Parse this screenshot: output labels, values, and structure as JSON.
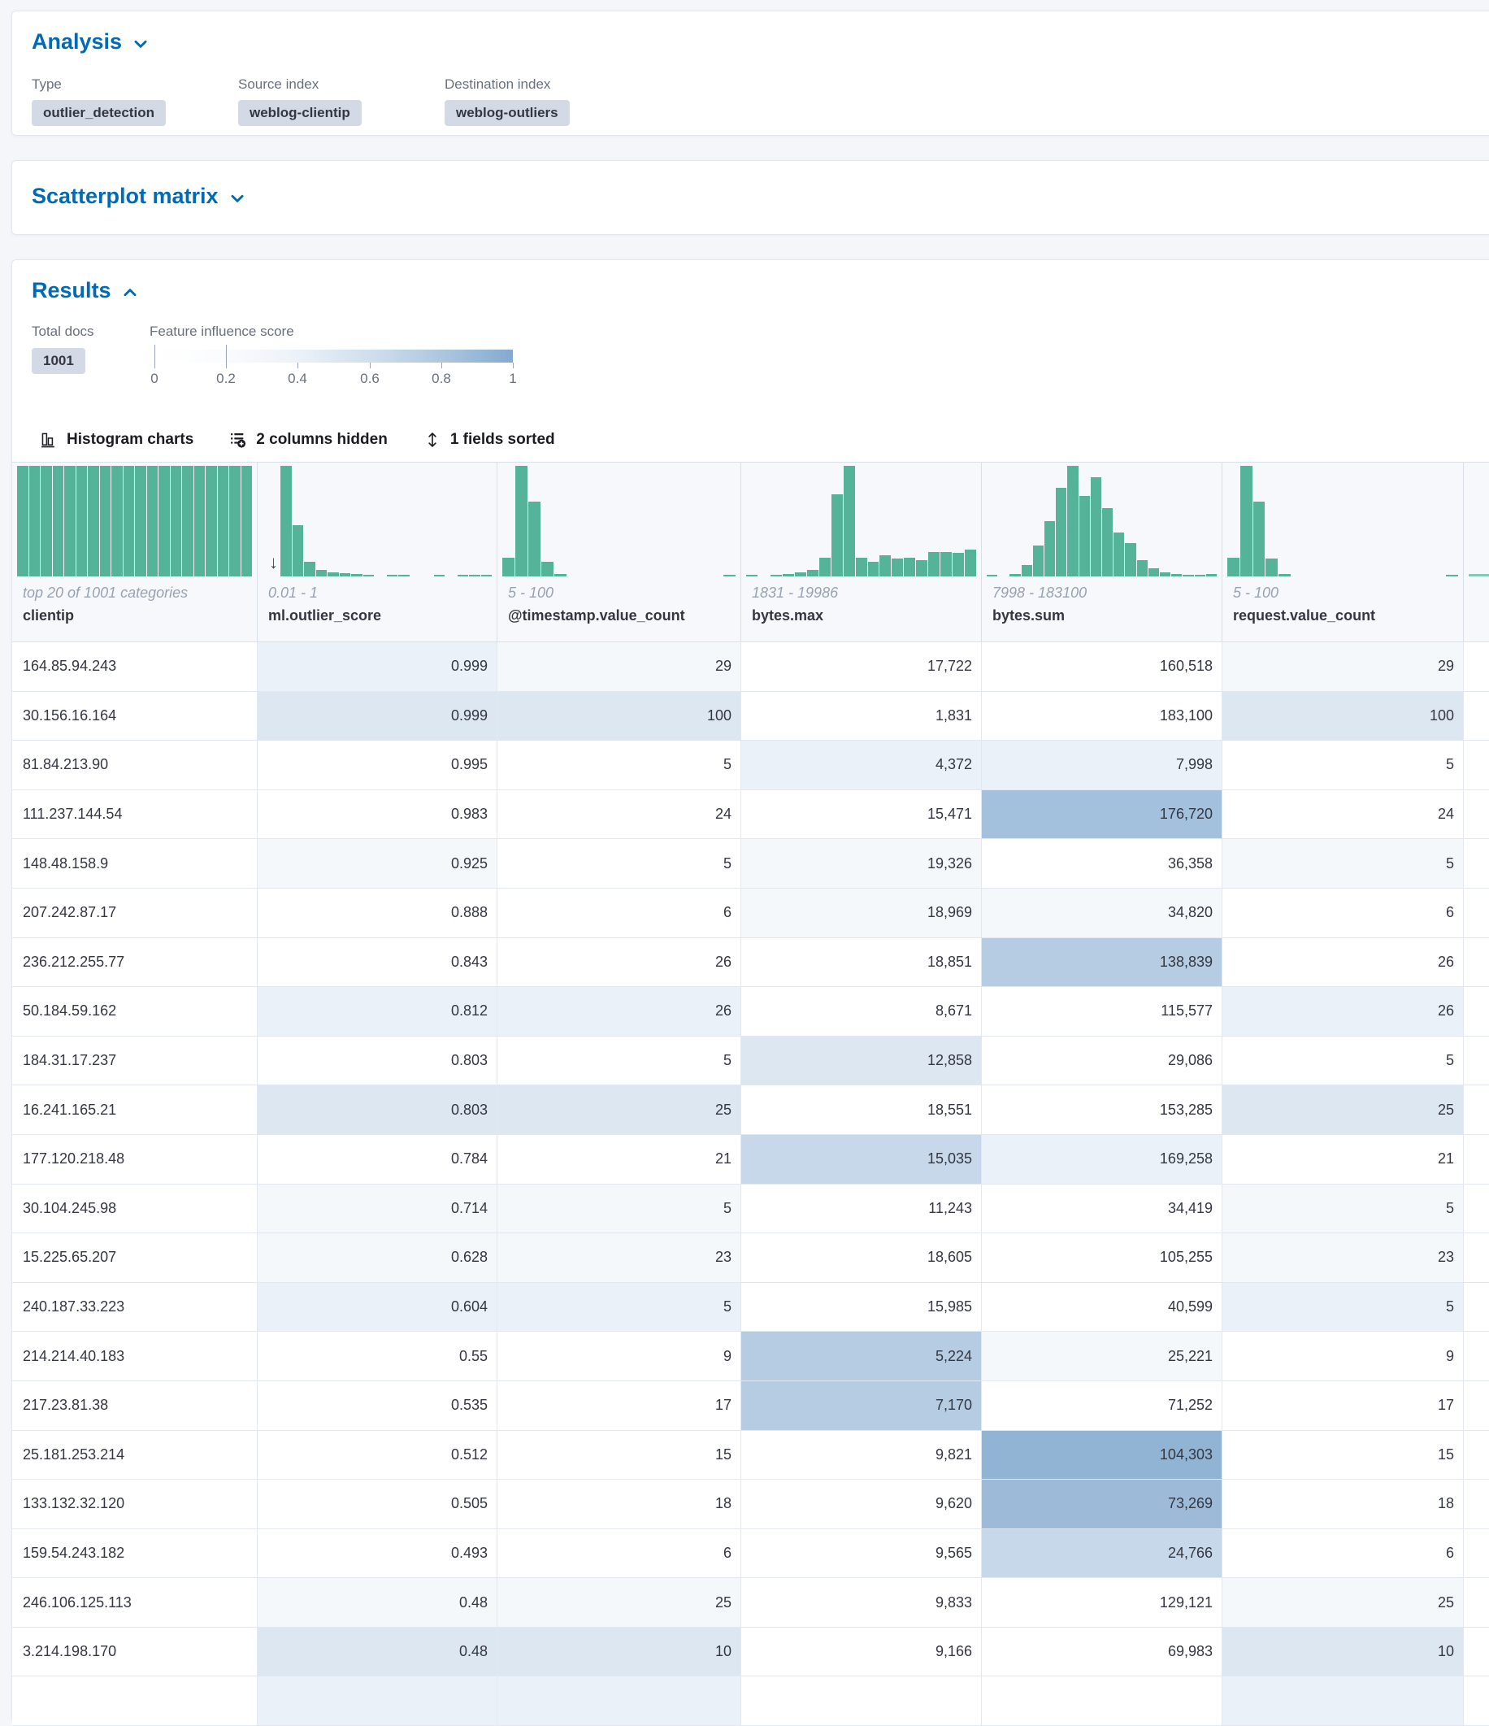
{
  "colors": {
    "accent": "#006BB4",
    "bar": "#54B399",
    "text": "#343741",
    "subdued": "#69707D",
    "range": "#98A2B3",
    "badge_bg": "#d3dae6",
    "header_bg": "#f6f8fb",
    "page_bg": "#f4f6f9",
    "influence_gradient_end": "#84aacf"
  },
  "analysis": {
    "title": "Analysis",
    "items": [
      {
        "label": "Type",
        "value": "outlier_detection"
      },
      {
        "label": "Source index",
        "value": "weblog-clientip"
      },
      {
        "label": "Destination index",
        "value": "weblog-outliers"
      }
    ]
  },
  "scatterplot": {
    "title": "Scatterplot matrix"
  },
  "results": {
    "title": "Results",
    "total_docs_label": "Total docs",
    "total_docs": "1001",
    "influence_label": "Feature influence score",
    "influence_ticks": [
      "0",
      "0.2",
      "0.4",
      "0.6",
      "0.8",
      "1"
    ],
    "toolbar": {
      "histogram": "Histogram charts",
      "columns": "2 columns hidden",
      "sorted": "1 fields sorted"
    }
  },
  "grid": {
    "shade_palette": [
      "#ffffff",
      "#f4f8fb",
      "#eaf1f8",
      "#dce7f2",
      "#c6d8ea",
      "#b5cce2",
      "#a3c0dc",
      "#9dbbd8",
      "#92b4d4"
    ],
    "columns": [
      {
        "id": "clientip",
        "name": "clientip",
        "range": "top 20 of 1001 categories",
        "sorted": false,
        "bars": [
          1,
          1,
          1,
          1,
          1,
          1,
          1,
          1,
          1,
          1,
          1,
          1,
          1,
          1,
          1,
          1,
          1,
          1,
          1,
          1
        ]
      },
      {
        "id": "ml-outlier-score",
        "name": "ml.outlier_score",
        "range": "0.01 - 1",
        "sorted": true,
        "bars": [
          1,
          0.46,
          0.13,
          0.06,
          0.04,
          0.03,
          0.02,
          0.01,
          0,
          0.012,
          0.008,
          0,
          0,
          0.008,
          0,
          0.01,
          0.006,
          0.012
        ]
      },
      {
        "id": "timestamp-value-count",
        "name": "@timestamp.value_count",
        "range": "5 - 100",
        "sorted": false,
        "bars": [
          0.17,
          1,
          0.68,
          0.13,
          0.02,
          0,
          0,
          0,
          0,
          0,
          0,
          0,
          0,
          0,
          0,
          0,
          0,
          0.012
        ]
      },
      {
        "id": "bytes-max",
        "name": "bytes.max",
        "range": "1831 - 19986",
        "sorted": false,
        "bars": [
          0.012,
          0,
          0.018,
          0.025,
          0.04,
          0.06,
          0.17,
          0.74,
          1,
          0.17,
          0.13,
          0.19,
          0.16,
          0.17,
          0.15,
          0.22,
          0.22,
          0.21,
          0.24
        ]
      },
      {
        "id": "bytes-sum",
        "name": "bytes.sum",
        "range": "7998 - 183100",
        "sorted": false,
        "bars": [
          0.012,
          0,
          0.025,
          0.1,
          0.28,
          0.5,
          0.8,
          1,
          0.73,
          0.9,
          0.62,
          0.4,
          0.3,
          0.15,
          0.07,
          0.035,
          0.02,
          0.012,
          0.008,
          0.02
        ]
      },
      {
        "id": "request-value-count",
        "name": "request.value_count",
        "range": "5 - 100",
        "sorted": false,
        "bars": [
          0.17,
          1,
          0.68,
          0.16,
          0.02,
          0,
          0,
          0,
          0,
          0,
          0,
          0,
          0,
          0,
          0,
          0,
          0,
          0.012
        ]
      },
      {
        "id": "next-column-partial",
        "name": "",
        "range": "",
        "sorted": false,
        "partial": true,
        "bars": [
          0.02
        ]
      }
    ],
    "rows": [
      {
        "clientip": "164.85.94.243",
        "cells": [
          [
            "0.999",
            2
          ],
          [
            "29",
            1
          ],
          [
            "17,722",
            0
          ],
          [
            "160,518",
            0
          ],
          [
            "29",
            1
          ]
        ]
      },
      {
        "clientip": "30.156.16.164",
        "cells": [
          [
            "0.999",
            3
          ],
          [
            "100",
            3
          ],
          [
            "1,831",
            0
          ],
          [
            "183,100",
            0
          ],
          [
            "100",
            3
          ]
        ]
      },
      {
        "clientip": "81.84.213.90",
        "cells": [
          [
            "0.995",
            0
          ],
          [
            "5",
            0
          ],
          [
            "4,372",
            2
          ],
          [
            "7,998",
            2
          ],
          [
            "5",
            0
          ]
        ]
      },
      {
        "clientip": "111.237.144.54",
        "cells": [
          [
            "0.983",
            0
          ],
          [
            "24",
            0
          ],
          [
            "15,471",
            0
          ],
          [
            "176,720",
            6
          ],
          [
            "24",
            0
          ]
        ]
      },
      {
        "clientip": "148.48.158.9",
        "cells": [
          [
            "0.925",
            1
          ],
          [
            "5",
            0
          ],
          [
            "19,326",
            1
          ],
          [
            "36,358",
            0
          ],
          [
            "5",
            1
          ]
        ]
      },
      {
        "clientip": "207.242.87.17",
        "cells": [
          [
            "0.888",
            0
          ],
          [
            "6",
            0
          ],
          [
            "18,969",
            1
          ],
          [
            "34,820",
            1
          ],
          [
            "6",
            0
          ]
        ]
      },
      {
        "clientip": "236.212.255.77",
        "cells": [
          [
            "0.843",
            0
          ],
          [
            "26",
            0
          ],
          [
            "18,851",
            0
          ],
          [
            "138,839",
            5
          ],
          [
            "26",
            0
          ]
        ]
      },
      {
        "clientip": "50.184.59.162",
        "cells": [
          [
            "0.812",
            2
          ],
          [
            "26",
            2
          ],
          [
            "8,671",
            0
          ],
          [
            "115,577",
            0
          ],
          [
            "26",
            2
          ]
        ]
      },
      {
        "clientip": "184.31.17.237",
        "cells": [
          [
            "0.803",
            0
          ],
          [
            "5",
            0
          ],
          [
            "12,858",
            3
          ],
          [
            "29,086",
            0
          ],
          [
            "5",
            0
          ]
        ]
      },
      {
        "clientip": "16.241.165.21",
        "cells": [
          [
            "0.803",
            3
          ],
          [
            "25",
            3
          ],
          [
            "18,551",
            0
          ],
          [
            "153,285",
            0
          ],
          [
            "25",
            3
          ]
        ]
      },
      {
        "clientip": "177.120.218.48",
        "cells": [
          [
            "0.784",
            0
          ],
          [
            "21",
            0
          ],
          [
            "15,035",
            4
          ],
          [
            "169,258",
            2
          ],
          [
            "21",
            0
          ]
        ]
      },
      {
        "clientip": "30.104.245.98",
        "cells": [
          [
            "0.714",
            1
          ],
          [
            "5",
            1
          ],
          [
            "11,243",
            0
          ],
          [
            "34,419",
            0
          ],
          [
            "5",
            1
          ]
        ]
      },
      {
        "clientip": "15.225.65.207",
        "cells": [
          [
            "0.628",
            1
          ],
          [
            "23",
            1
          ],
          [
            "18,605",
            0
          ],
          [
            "105,255",
            0
          ],
          [
            "23",
            1
          ]
        ]
      },
      {
        "clientip": "240.187.33.223",
        "cells": [
          [
            "0.604",
            2
          ],
          [
            "5",
            2
          ],
          [
            "15,985",
            0
          ],
          [
            "40,599",
            0
          ],
          [
            "5",
            2
          ]
        ]
      },
      {
        "clientip": "214.214.40.183",
        "cells": [
          [
            "0.55",
            0
          ],
          [
            "9",
            0
          ],
          [
            "5,224",
            5
          ],
          [
            "25,221",
            1
          ],
          [
            "9",
            0
          ]
        ]
      },
      {
        "clientip": "217.23.81.38",
        "cells": [
          [
            "0.535",
            0
          ],
          [
            "17",
            0
          ],
          [
            "7,170",
            5
          ],
          [
            "71,252",
            0
          ],
          [
            "17",
            0
          ]
        ]
      },
      {
        "clientip": "25.181.253.214",
        "cells": [
          [
            "0.512",
            0
          ],
          [
            "15",
            0
          ],
          [
            "9,821",
            0
          ],
          [
            "104,303",
            8
          ],
          [
            "15",
            0
          ]
        ]
      },
      {
        "clientip": "133.132.32.120",
        "cells": [
          [
            "0.505",
            0
          ],
          [
            "18",
            0
          ],
          [
            "9,620",
            0
          ],
          [
            "73,269",
            7
          ],
          [
            "18",
            0
          ]
        ]
      },
      {
        "clientip": "159.54.243.182",
        "cells": [
          [
            "0.493",
            0
          ],
          [
            "6",
            0
          ],
          [
            "9,565",
            0
          ],
          [
            "24,766",
            4
          ],
          [
            "6",
            0
          ]
        ]
      },
      {
        "clientip": "246.106.125.113",
        "cells": [
          [
            "0.48",
            1
          ],
          [
            "25",
            1
          ],
          [
            "9,833",
            0
          ],
          [
            "129,121",
            0
          ],
          [
            "25",
            1
          ]
        ]
      },
      {
        "clientip": "3.214.198.170",
        "cells": [
          [
            "0.48",
            3
          ],
          [
            "10",
            3
          ],
          [
            "9,166",
            0
          ],
          [
            "69,983",
            0
          ],
          [
            "10",
            3
          ]
        ]
      },
      {
        "clientip": "",
        "cells": [
          [
            "",
            2
          ],
          [
            "",
            2
          ],
          [
            "",
            0
          ],
          [
            "",
            0
          ],
          [
            "",
            2
          ]
        ]
      }
    ]
  }
}
